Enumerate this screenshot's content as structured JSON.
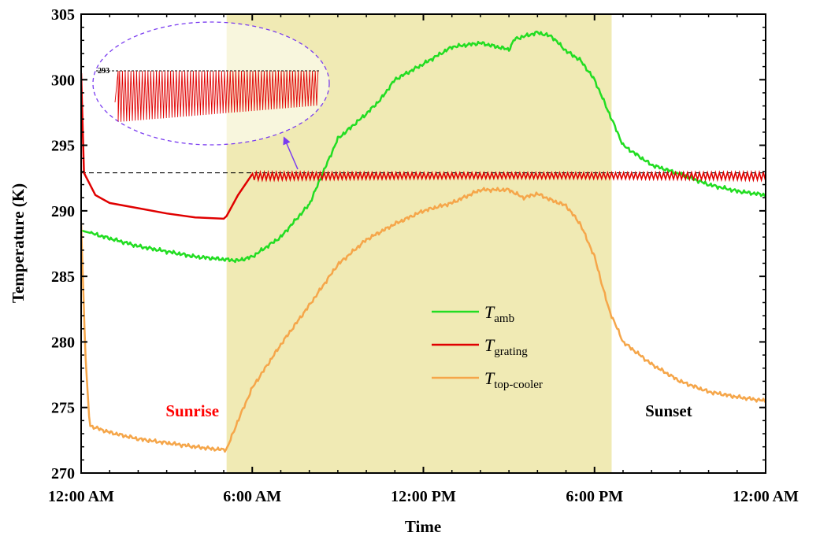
{
  "chart_data": {
    "type": "line",
    "title": "",
    "xlabel": "Time",
    "ylabel": "Temperature (K)",
    "xlim": [
      0,
      24
    ],
    "ylim": [
      270,
      305
    ],
    "x_ticks": [
      {
        "value": 0,
        "label": "12:00 AM"
      },
      {
        "value": 6,
        "label": "6:00 AM"
      },
      {
        "value": 12,
        "label": "12:00 PM"
      },
      {
        "value": 18,
        "label": "6:00 PM"
      },
      {
        "value": 24,
        "label": "12:00 AM"
      }
    ],
    "y_ticks": [
      270,
      275,
      280,
      285,
      290,
      295,
      300,
      305
    ],
    "x_minor_step": 1,
    "y_minor_step": 1,
    "daylight_band": {
      "from": 5.1,
      "to": 18.6,
      "color": "#f0eab4"
    },
    "reference_line": {
      "y": 292.9,
      "style": "dashed",
      "color": "#000000"
    },
    "annotations": [
      {
        "text": "Sunrise",
        "x": 3.9,
        "y": 274.8,
        "color": "#ff0000"
      },
      {
        "text": "Sunset",
        "x": 20.6,
        "y": 274.8,
        "color": "#000000"
      }
    ],
    "legend": {
      "position": "center-right",
      "entries": [
        {
          "main": "T",
          "sub": "amb",
          "color": "#22dd22"
        },
        {
          "main": "T",
          "sub": "grating",
          "color": "#e00000"
        },
        {
          "main": "T",
          "sub": "top-cooler",
          "color": "#f5a64a"
        }
      ]
    },
    "series": [
      {
        "sub": "amb",
        "color": "#22dd22",
        "x": [
          0,
          0.5,
          1,
          2,
          3,
          4,
          5,
          5.5,
          6,
          7,
          8,
          8.5,
          9,
          10,
          10.5,
          11,
          12,
          13,
          14,
          15,
          15.2,
          16,
          16.5,
          17,
          17.5,
          18,
          18.5,
          19,
          20,
          21,
          22,
          23,
          24
        ],
        "y": [
          288.5,
          288.2,
          287.9,
          287.3,
          286.9,
          286.5,
          286.3,
          286.2,
          286.5,
          288,
          290.5,
          293,
          295.5,
          297.4,
          298.5,
          300,
          301.2,
          302.5,
          302.8,
          302.3,
          303.1,
          303.6,
          303.3,
          302.2,
          301.5,
          300,
          297.5,
          295,
          293.5,
          292.8,
          292,
          291.5,
          291.2
        ]
      },
      {
        "sub": "grating",
        "color": "#e00000",
        "x": [
          0,
          0.1,
          0.5,
          1,
          2,
          3,
          4,
          5,
          5.1,
          5.5,
          6,
          24
        ],
        "y": [
          300.5,
          292.9,
          291.2,
          290.6,
          290.2,
          289.8,
          289.5,
          289.4,
          289.6,
          291.2,
          292.8,
          292.8
        ],
        "oscillation_band": {
          "from": 6,
          "to": 24,
          "amplitude": 0.45
        }
      },
      {
        "sub": "top-cooler",
        "color": "#f5a64a",
        "x": [
          0,
          0.15,
          0.3,
          1,
          2,
          3,
          4,
          4.8,
          5.1,
          5.5,
          6,
          7,
          8,
          9,
          10,
          11,
          12,
          13,
          14,
          15,
          15.5,
          16,
          16.5,
          17,
          17.5,
          18,
          18.5,
          19,
          20,
          21,
          22,
          23,
          24
        ],
        "y": [
          289,
          279,
          273.6,
          273.1,
          272.6,
          272.3,
          272,
          271.8,
          271.8,
          274,
          276.5,
          279.8,
          282.8,
          285.9,
          287.8,
          289,
          290,
          290.6,
          291.6,
          291.6,
          291,
          291.3,
          290.8,
          290.4,
          289,
          286.5,
          282.5,
          280,
          278.3,
          277,
          276.2,
          275.8,
          275.5
        ]
      }
    ],
    "inset": {
      "label": "293",
      "description_series": "grating"
    }
  }
}
